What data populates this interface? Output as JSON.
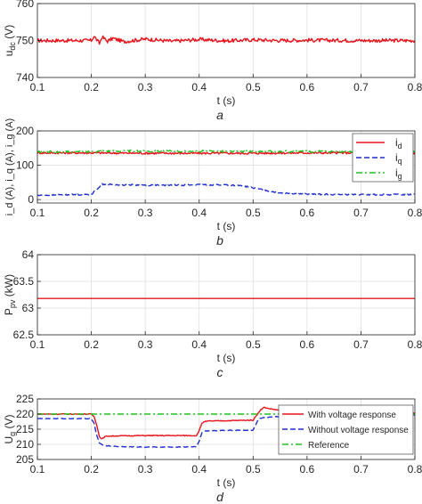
{
  "chart_data": [
    {
      "type": "line",
      "panel_label": "a",
      "xlabel": "t (s)",
      "ylabel": "u_dc (V)",
      "ylabel_main": "u",
      "ylabel_sub": "dc",
      "ylabel_unit": " (V)",
      "xlim": [
        0.1,
        0.8
      ],
      "ylim": [
        740,
        760
      ],
      "x_ticks": [
        0.1,
        0.2,
        0.3,
        0.4,
        0.5,
        0.6,
        0.7,
        0.8
      ],
      "y_ticks": [
        740,
        750,
        760
      ],
      "grid": true,
      "series": [
        {
          "name": "",
          "color": "#e8141c",
          "style": "solid",
          "noise": 0.5,
          "x": [
            0.1,
            0.2,
            0.205,
            0.21,
            0.215,
            0.22,
            0.23,
            0.24,
            0.26,
            0.3,
            0.35,
            0.4,
            0.45,
            0.5,
            0.55,
            0.6,
            0.7,
            0.8
          ],
          "y": [
            750,
            750,
            751.2,
            750.2,
            749.2,
            751.0,
            749.8,
            750.6,
            749.7,
            750.4,
            749.8,
            750.3,
            749.9,
            750.2,
            750.0,
            750.1,
            750.0,
            750.0
          ]
        }
      ]
    },
    {
      "type": "line",
      "panel_label": "b",
      "xlabel": "t (s)",
      "ylabel": "i_d (A), i_q (A), i_g (A)",
      "xlim": [
        0.1,
        0.8
      ],
      "ylim": [
        -10,
        200
      ],
      "x_ticks": [
        0.1,
        0.2,
        0.3,
        0.4,
        0.5,
        0.6,
        0.7,
        0.8
      ],
      "y_ticks": [
        0,
        100,
        200
      ],
      "grid": true,
      "legend_position": "right",
      "series": [
        {
          "name": "i_d",
          "legend_main": "i",
          "legend_sub": "d",
          "color": "#e8141c",
          "style": "solid",
          "noise": 3,
          "x": [
            0.1,
            0.2,
            0.3,
            0.4,
            0.5,
            0.6,
            0.7,
            0.8
          ],
          "y": [
            136,
            136,
            135,
            135,
            135,
            136,
            136,
            136
          ]
        },
        {
          "name": "i_q",
          "legend_main": "i",
          "legend_sub": "q",
          "color": "#1f2fd0",
          "style": "dashed",
          "noise": 2,
          "x": [
            0.1,
            0.15,
            0.2,
            0.22,
            0.25,
            0.3,
            0.35,
            0.4,
            0.45,
            0.48,
            0.52,
            0.55,
            0.6,
            0.7,
            0.8
          ],
          "y": [
            12,
            14,
            15,
            45,
            43,
            42,
            42,
            43,
            43,
            40,
            28,
            20,
            16,
            14,
            15
          ]
        },
        {
          "name": "i_g",
          "legend_main": "i",
          "legend_sub": "g",
          "color": "#22c21c",
          "style": "dashdot",
          "noise": 3,
          "x": [
            0.1,
            0.2,
            0.22,
            0.3,
            0.4,
            0.5,
            0.6,
            0.7,
            0.8
          ],
          "y": [
            139,
            139,
            142,
            141,
            141,
            140,
            140,
            140,
            140
          ]
        }
      ]
    },
    {
      "type": "line",
      "panel_label": "c",
      "xlabel": "t (s)",
      "ylabel": "P_pv (kW)",
      "ylabel_main": "P",
      "ylabel_sub": "pv",
      "ylabel_unit": " (kW)",
      "xlim": [
        0.1,
        0.8
      ],
      "ylim": [
        62.5,
        64
      ],
      "x_ticks": [
        0.1,
        0.2,
        0.3,
        0.4,
        0.5,
        0.6,
        0.7,
        0.8
      ],
      "y_ticks": [
        62.5,
        63,
        63.5,
        64
      ],
      "grid": true,
      "series": [
        {
          "name": "",
          "color": "#e8141c",
          "style": "solid",
          "noise": 0,
          "x": [
            0.1,
            0.8
          ],
          "y": [
            63.18,
            63.18
          ]
        }
      ]
    },
    {
      "type": "line",
      "panel_label": "d",
      "xlabel": "t (s)",
      "ylabel": "U_g (V)",
      "ylabel_main": "U",
      "ylabel_sub": "g",
      "ylabel_unit": " (V)",
      "xlim": [
        0.1,
        0.8
      ],
      "ylim": [
        205,
        225
      ],
      "x_ticks": [
        0.1,
        0.2,
        0.3,
        0.4,
        0.5,
        0.6,
        0.7,
        0.8
      ],
      "y_ticks": [
        205,
        210,
        215,
        220,
        225
      ],
      "grid": true,
      "legend_position": "right",
      "series": [
        {
          "name": "With voltage response",
          "color": "#e8141c",
          "style": "solid",
          "noise": 0.15,
          "x": [
            0.1,
            0.2,
            0.205,
            0.21,
            0.215,
            0.22,
            0.225,
            0.23,
            0.25,
            0.3,
            0.35,
            0.395,
            0.4,
            0.405,
            0.41,
            0.42,
            0.45,
            0.5,
            0.51,
            0.515,
            0.52,
            0.53,
            0.55,
            0.6,
            0.65,
            0.7,
            0.75,
            0.8
          ],
          "y": [
            220,
            220,
            219.2,
            216.5,
            212.5,
            211.8,
            212.5,
            212.7,
            212.8,
            212.9,
            212.9,
            212.9,
            214.5,
            217.0,
            217.5,
            217.7,
            217.8,
            218.0,
            220.5,
            221.5,
            222.2,
            221.8,
            221.2,
            220.8,
            220.6,
            220.5,
            220.3,
            220.2
          ]
        },
        {
          "name": "Without voltage response",
          "color": "#1f2fd0",
          "style": "dashed",
          "noise": 0.1,
          "x": [
            0.1,
            0.2,
            0.205,
            0.21,
            0.215,
            0.22,
            0.23,
            0.25,
            0.3,
            0.35,
            0.395,
            0.4,
            0.405,
            0.41,
            0.42,
            0.45,
            0.5,
            0.505,
            0.51,
            0.52,
            0.55,
            0.6,
            0.7,
            0.8
          ],
          "y": [
            218.5,
            218.5,
            217.0,
            213.0,
            210.5,
            209.8,
            209.5,
            209.3,
            209.1,
            209.1,
            209.2,
            211.0,
            213.8,
            214.3,
            214.5,
            214.6,
            214.7,
            216.5,
            218.4,
            218.9,
            219.2,
            219.4,
            219.5,
            219.6
          ]
        },
        {
          "name": "Reference",
          "color": "#22c21c",
          "style": "dashdot",
          "noise": 0,
          "x": [
            0.1,
            0.8
          ],
          "y": [
            220,
            220
          ]
        }
      ]
    }
  ]
}
